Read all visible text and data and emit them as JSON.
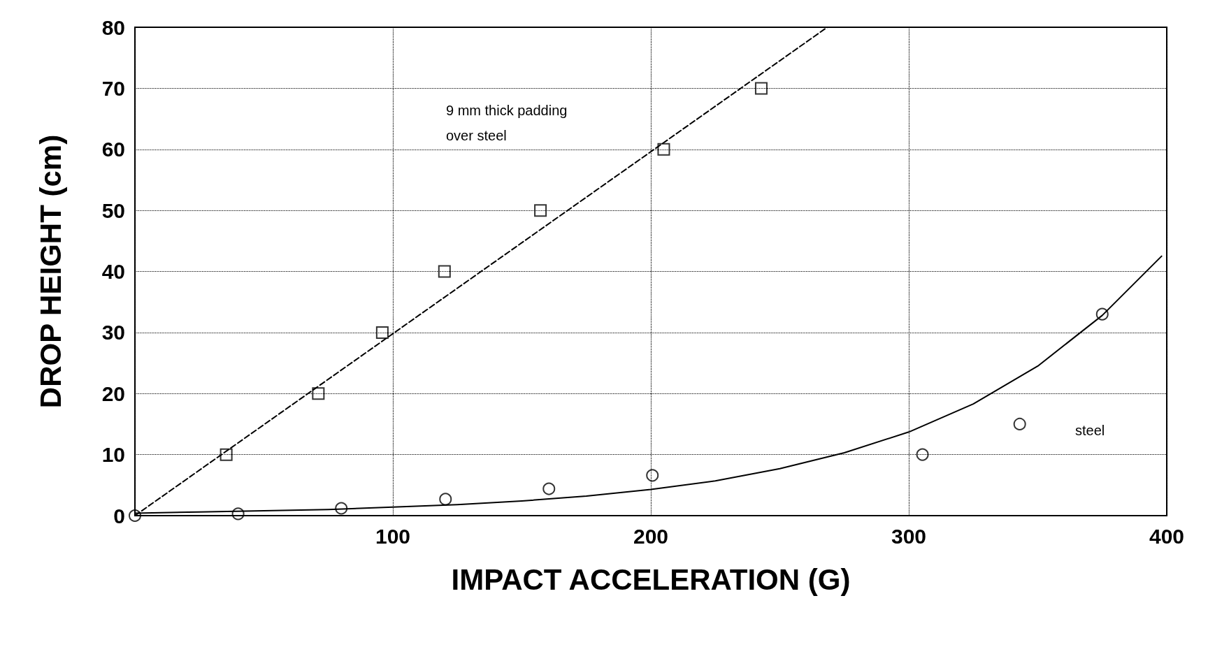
{
  "chart_data": {
    "type": "scatter",
    "xlabel": "IMPACT ACCELERATION (G)",
    "ylabel": "DROP HEIGHT (cm)",
    "xlim": [
      0,
      400
    ],
    "xticks": [
      100,
      200,
      300,
      400
    ],
    "ylim": [
      0,
      80
    ],
    "yticks": [
      0,
      10,
      20,
      30,
      40,
      50,
      60,
      70,
      80
    ],
    "grid": true,
    "series": [
      {
        "marker": "square",
        "color": "#000000",
        "x": [
          35.4,
          71.1,
          95.9,
          120,
          157.2,
          205,
          242.8
        ],
        "values": [
          10,
          20,
          30,
          40,
          50,
          60,
          70
        ]
      },
      {
        "marker": "circle",
        "color": "#000000",
        "x": [
          0,
          40,
          80,
          120.4,
          160.5,
          200.6,
          305.3,
          343,
          375
        ],
        "values": [
          0,
          0.3,
          1.2,
          2.7,
          4.4,
          6.6,
          10,
          15,
          33
        ]
      },
      {
        "type": "line",
        "marker": "none",
        "line_style": "dashed",
        "color": "#000000",
        "x": [
          0,
          268.4
        ],
        "values": [
          0,
          80
        ]
      },
      {
        "type": "line",
        "marker": "none",
        "line_style": "solid",
        "color": "#000000",
        "x": [
          0,
          25,
          50,
          75,
          100,
          125,
          150,
          175,
          200,
          225,
          250,
          275,
          300,
          325,
          350,
          375,
          398
        ],
        "values": [
          0.4,
          0.6,
          0.8,
          1.0,
          1.4,
          1.8,
          2.4,
          3.2,
          4.3,
          5.7,
          7.7,
          10.3,
          13.7,
          18.3,
          24.5,
          32.8,
          42.5
        ]
      }
    ],
    "annotations": [
      "9 mm thick padding\nover steel",
      "steel"
    ]
  }
}
